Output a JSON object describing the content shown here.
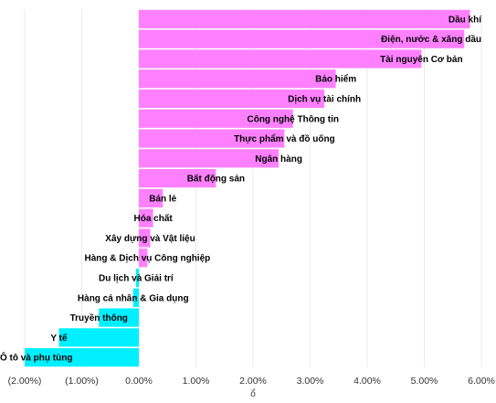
{
  "chart_data": {
    "type": "bar",
    "orientation": "horizontal",
    "categories": [
      "Dầu khí",
      "Điện, nước & xăng dầu",
      "Tài nguyên Cơ bản",
      "Bảo hiểm",
      "Dịch vụ tài chính",
      "Công nghệ Thông tin",
      "Thực phẩm và đồ uống",
      "Ngân hàng",
      "Bất động sản",
      "Bán lẻ",
      "Hóa chất",
      "Xây dựng và Vật liệu",
      "Hàng & Dịch vụ Công nghiệp",
      "Du lịch và Giải trí",
      "Hàng cá nhân & Gia dụng",
      "Truyền thông",
      "Y tế",
      "Ô tô và phụ tùng"
    ],
    "values": [
      5.8,
      5.7,
      4.95,
      3.45,
      3.25,
      2.7,
      2.55,
      2.45,
      1.35,
      0.42,
      0.25,
      0.2,
      0.15,
      -0.05,
      -0.1,
      -0.7,
      -1.4,
      -2.0
    ],
    "xlim": [
      -2.0,
      6.0
    ],
    "xticks": [
      -2,
      -1,
      0,
      1,
      2,
      3,
      4,
      5,
      6
    ],
    "xtick_labels": [
      "(2.00%)",
      "(1.00%)",
      "0.00%",
      "1.00%",
      "2.00%",
      "3.00%",
      "4.00%",
      "5.00%",
      "6.00%"
    ],
    "xlabel": "ổ",
    "positive_color": "#ff80ff",
    "negative_color": "#00f0ff",
    "grid": "vertical"
  }
}
